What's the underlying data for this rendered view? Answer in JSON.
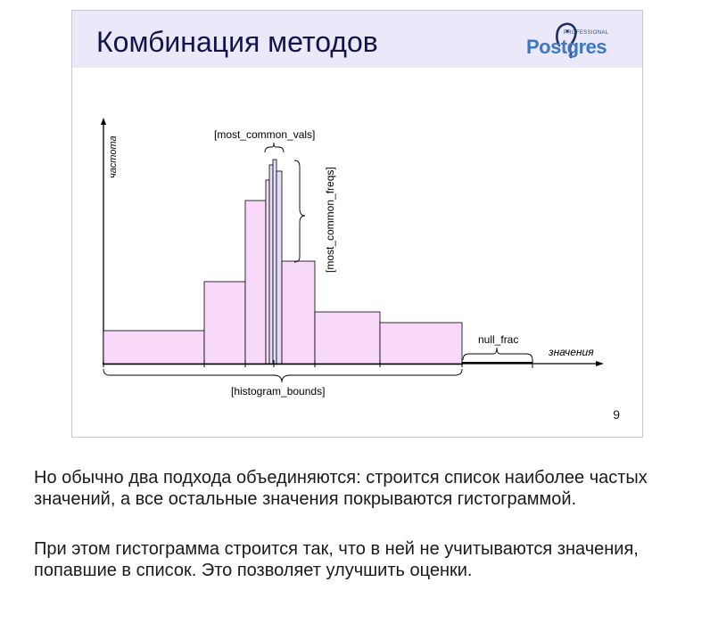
{
  "slide": {
    "title": "Комбинация методов",
    "page_number": "9",
    "logo": {
      "brand": "PostgreSQL",
      "top_text": "PROFESSIONAL",
      "word": "Postgres"
    }
  },
  "diagram": {
    "y_axis_label": "частота",
    "x_axis_label": "значения",
    "labels": {
      "most_common_vals": "[most_common_vals]",
      "most_common_freqs": "[most_common_freqs]",
      "null_frac": "null_frac",
      "histogram_bounds": "[histogram_bounds]"
    },
    "colors": {
      "bar_fill": "#f9d9f9",
      "mcv_fill": "#e0e0ff",
      "axis": "#000000"
    }
  },
  "text": {
    "paragraph_1": "Но обычно два подхода объединяются: строится список наиболее частых значений, а все остальные значения покрываются гистограммой.",
    "paragraph_2": "При этом гистограмма строится так, что в ней не учитываются значения, попавшие в список. Это позволяет улучшить оценки."
  }
}
